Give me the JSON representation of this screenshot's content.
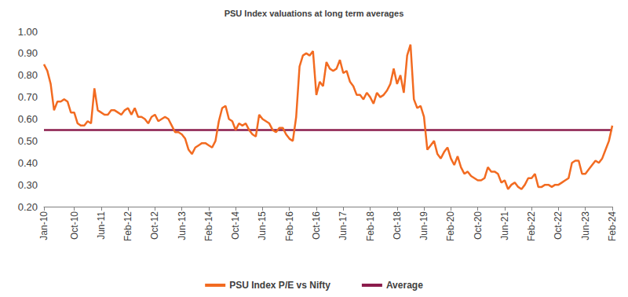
{
  "chart_data": {
    "type": "line",
    "title": "PSU Index valuations at long term averages",
    "categories": [
      "Jan-10",
      null,
      null,
      null,
      null,
      null,
      null,
      null,
      null,
      "Oct-10",
      null,
      null,
      null,
      null,
      null,
      null,
      null,
      "Jun-11",
      null,
      null,
      null,
      null,
      null,
      null,
      null,
      "Feb-12",
      null,
      null,
      null,
      null,
      null,
      null,
      null,
      "Oct-12",
      null,
      null,
      null,
      null,
      null,
      null,
      null,
      "Jun-13",
      null,
      null,
      null,
      null,
      null,
      null,
      null,
      "Feb-14",
      null,
      null,
      null,
      null,
      null,
      null,
      null,
      "Oct-14",
      null,
      null,
      null,
      null,
      null,
      null,
      null,
      "Jun-15",
      null,
      null,
      null,
      null,
      null,
      null,
      null,
      "Feb-16",
      null,
      null,
      null,
      null,
      null,
      null,
      null,
      "Oct-16",
      null,
      null,
      null,
      null,
      null,
      null,
      null,
      "Jun-17",
      null,
      null,
      null,
      null,
      null,
      null,
      null,
      "Feb-18",
      null,
      null,
      null,
      null,
      null,
      null,
      null,
      "Oct-18",
      null,
      null,
      null,
      null,
      null,
      null,
      null,
      "Jun-19",
      null,
      null,
      null,
      null,
      null,
      null,
      null,
      "Feb-20",
      null,
      null,
      null,
      null,
      null,
      null,
      null,
      "Oct-20",
      null,
      null,
      null,
      null,
      null,
      null,
      null,
      "Jun-21",
      null,
      null,
      null,
      null,
      null,
      null,
      null,
      "Feb-22",
      null,
      null,
      null,
      null,
      null,
      null,
      null,
      "Oct-22",
      null,
      null,
      null,
      null,
      null,
      null,
      null,
      "Jun-23",
      null,
      null,
      null,
      null,
      null,
      null,
      null,
      "Feb-24"
    ],
    "series": [
      {
        "name": "PSU Index P/E vs Nifty",
        "color": "#f26b21",
        "values": [
          0.85,
          0.82,
          0.76,
          0.64,
          0.68,
          0.68,
          0.69,
          0.68,
          0.63,
          0.63,
          0.58,
          0.57,
          0.57,
          0.59,
          0.58,
          0.74,
          0.64,
          0.63,
          0.62,
          0.62,
          0.64,
          0.64,
          0.63,
          0.62,
          0.64,
          0.65,
          0.62,
          0.65,
          0.61,
          0.61,
          0.6,
          0.58,
          0.61,
          0.62,
          0.59,
          0.6,
          0.61,
          0.6,
          0.57,
          0.54,
          0.54,
          0.53,
          0.51,
          0.46,
          0.44,
          0.47,
          0.48,
          0.49,
          0.49,
          0.48,
          0.47,
          0.5,
          0.59,
          0.65,
          0.66,
          0.6,
          0.59,
          0.55,
          0.58,
          0.57,
          0.58,
          0.55,
          0.53,
          0.52,
          0.62,
          0.6,
          0.59,
          0.58,
          0.55,
          0.54,
          0.56,
          0.56,
          0.53,
          0.51,
          0.5,
          0.61,
          0.84,
          0.89,
          0.9,
          0.89,
          0.91,
          0.71,
          0.77,
          0.75,
          0.86,
          0.83,
          0.82,
          0.83,
          0.87,
          0.81,
          0.82,
          0.77,
          0.75,
          0.71,
          0.71,
          0.69,
          0.72,
          0.7,
          0.67,
          0.72,
          0.7,
          0.71,
          0.73,
          0.76,
          0.83,
          0.76,
          0.8,
          0.72,
          0.89,
          0.94,
          0.69,
          0.65,
          0.66,
          0.61,
          0.46,
          0.48,
          0.5,
          0.44,
          0.42,
          0.45,
          0.47,
          0.42,
          0.39,
          0.43,
          0.38,
          0.35,
          0.36,
          0.34,
          0.33,
          0.32,
          0.32,
          0.33,
          0.38,
          0.36,
          0.36,
          0.35,
          0.31,
          0.32,
          0.28,
          0.3,
          0.31,
          0.29,
          0.28,
          0.3,
          0.33,
          0.33,
          0.35,
          0.29,
          0.29,
          0.3,
          0.3,
          0.29,
          0.3,
          0.3,
          0.31,
          0.32,
          0.33,
          0.4,
          0.41,
          0.41,
          0.35,
          0.35,
          0.37,
          0.39,
          0.41,
          0.4,
          0.42,
          0.46,
          0.5,
          0.57
        ]
      },
      {
        "name": "Average",
        "color": "#8b1c4c",
        "values": [
          0.55,
          0.55,
          0.55,
          0.55,
          0.55,
          0.55,
          0.55,
          0.55,
          0.55,
          0.55,
          0.55,
          0.55,
          0.55,
          0.55,
          0.55,
          0.55,
          0.55,
          0.55,
          0.55,
          0.55,
          0.55,
          0.55,
          0.55,
          0.55,
          0.55,
          0.55,
          0.55,
          0.55,
          0.55,
          0.55,
          0.55,
          0.55,
          0.55,
          0.55,
          0.55,
          0.55,
          0.55,
          0.55,
          0.55,
          0.55,
          0.55,
          0.55,
          0.55,
          0.55,
          0.55,
          0.55,
          0.55,
          0.55,
          0.55,
          0.55,
          0.55,
          0.55,
          0.55,
          0.55,
          0.55,
          0.55,
          0.55,
          0.55,
          0.55,
          0.55,
          0.55,
          0.55,
          0.55,
          0.55,
          0.55,
          0.55,
          0.55,
          0.55,
          0.55,
          0.55,
          0.55,
          0.55,
          0.55,
          0.55,
          0.55,
          0.55,
          0.55,
          0.55,
          0.55,
          0.55,
          0.55,
          0.55,
          0.55,
          0.55,
          0.55,
          0.55,
          0.55,
          0.55,
          0.55,
          0.55,
          0.55,
          0.55,
          0.55,
          0.55,
          0.55,
          0.55,
          0.55,
          0.55,
          0.55,
          0.55,
          0.55,
          0.55,
          0.55,
          0.55,
          0.55,
          0.55,
          0.55,
          0.55,
          0.55,
          0.55,
          0.55,
          0.55,
          0.55,
          0.55,
          0.55,
          0.55,
          0.55,
          0.55,
          0.55,
          0.55,
          0.55,
          0.55,
          0.55,
          0.55,
          0.55,
          0.55,
          0.55,
          0.55,
          0.55,
          0.55,
          0.55,
          0.55,
          0.55,
          0.55,
          0.55,
          0.55,
          0.55,
          0.55,
          0.55,
          0.55,
          0.55,
          0.55,
          0.55,
          0.55,
          0.55,
          0.55,
          0.55,
          0.55,
          0.55,
          0.55,
          0.55,
          0.55,
          0.55,
          0.55,
          0.55,
          0.55,
          0.55,
          0.55,
          0.55,
          0.55,
          0.55,
          0.55,
          0.55,
          0.55,
          0.55,
          0.55,
          0.55,
          0.55,
          0.55,
          0.55
        ]
      }
    ],
    "ylim": [
      0.2,
      1.0
    ],
    "yticks": [
      {
        "value": 0.2,
        "label": "0.20"
      },
      {
        "value": 0.3,
        "label": "0.30"
      },
      {
        "value": 0.4,
        "label": "0.40"
      },
      {
        "value": 0.5,
        "label": "0.50"
      },
      {
        "value": 0.6,
        "label": "0.60"
      },
      {
        "value": 0.7,
        "label": "0.70"
      },
      {
        "value": 0.8,
        "label": "0.80"
      },
      {
        "value": 0.9,
        "label": "0.90"
      },
      {
        "value": 1.0,
        "label": "1.00"
      }
    ],
    "grid": false,
    "legend": "bottom"
  }
}
